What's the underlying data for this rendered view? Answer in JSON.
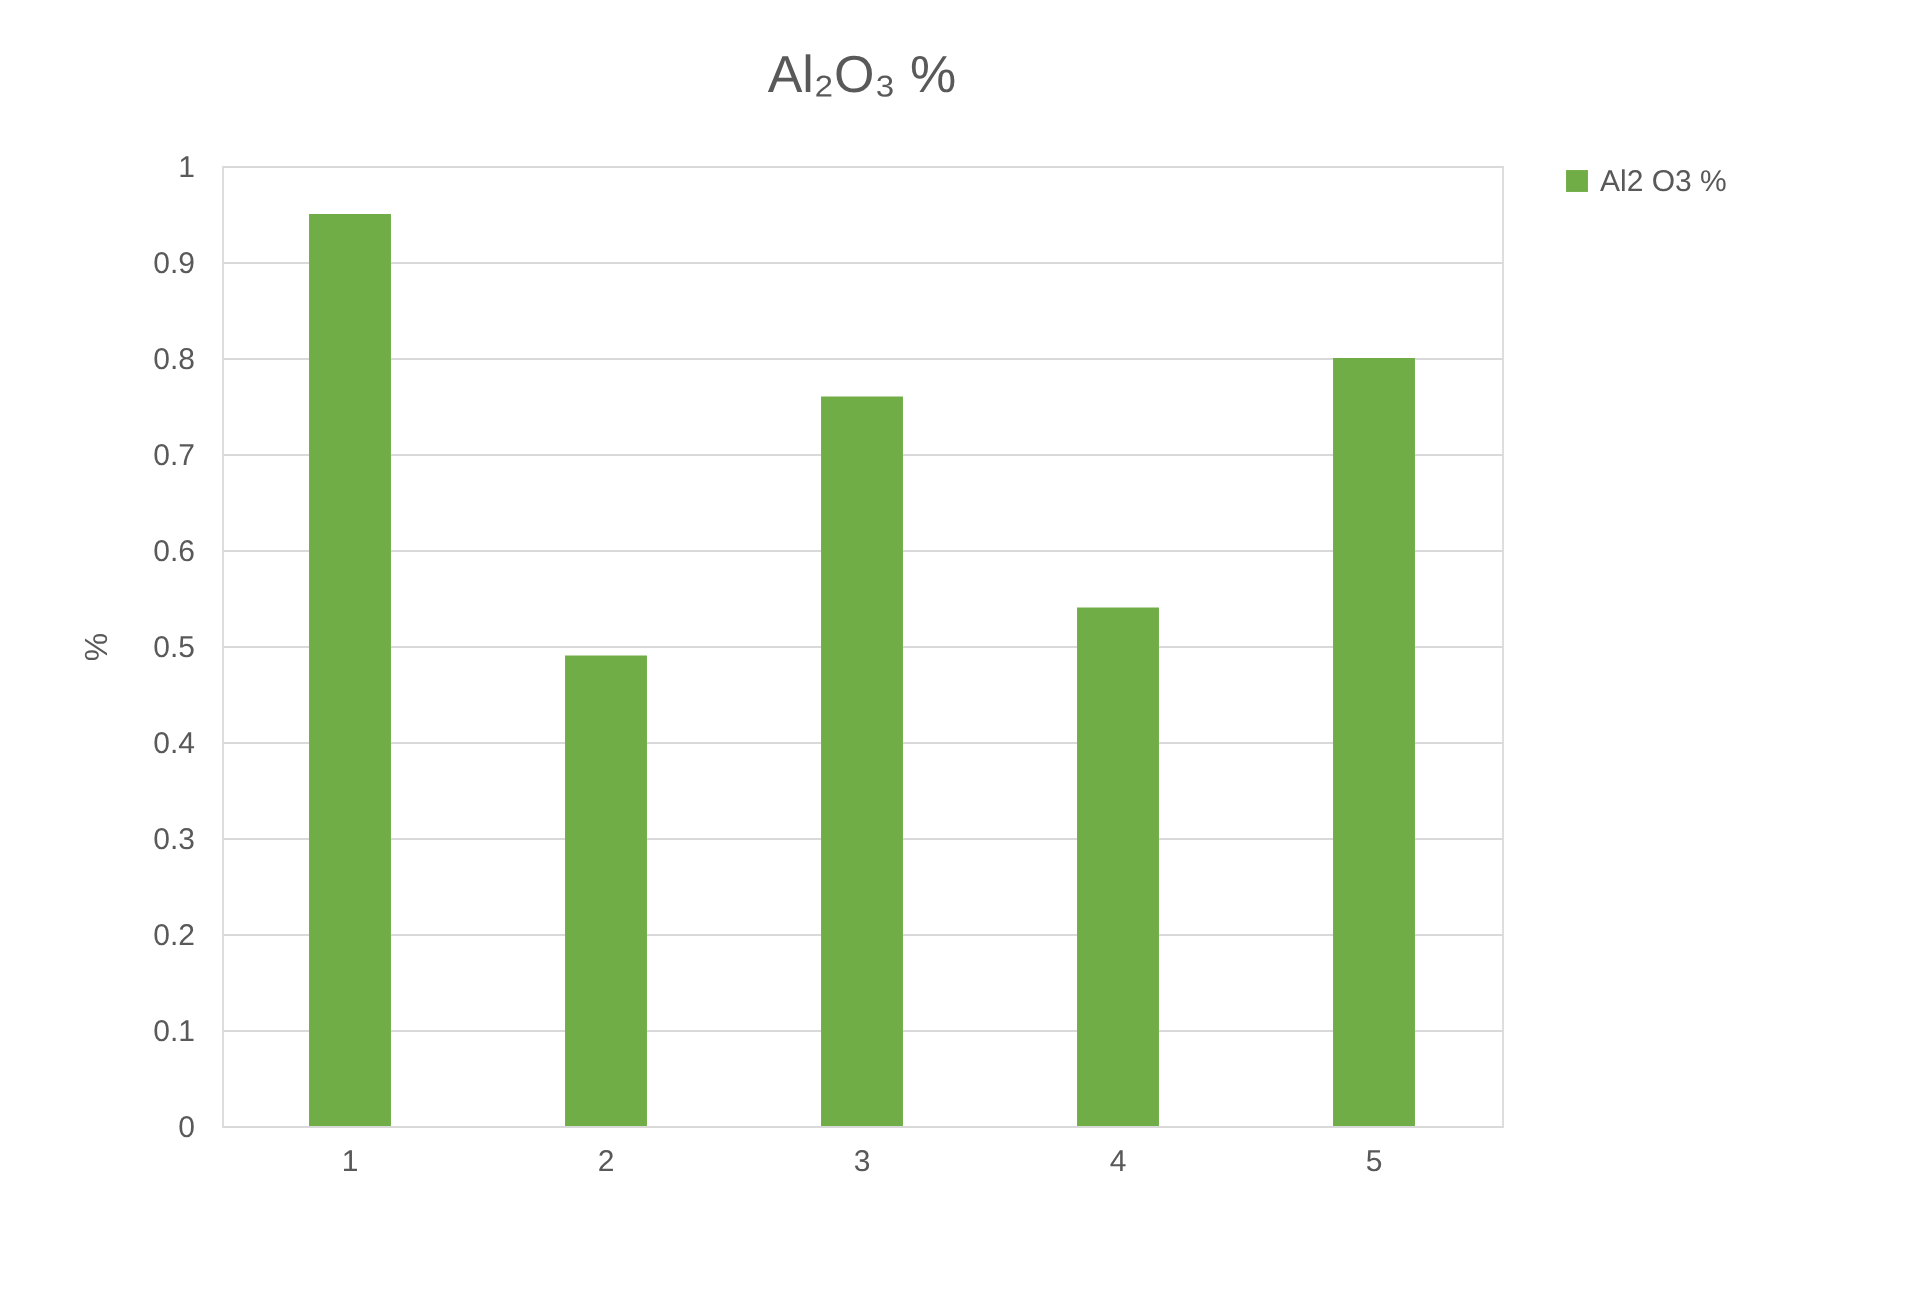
{
  "chart_data": {
    "type": "bar",
    "title": "Al₂O₃ %",
    "ylabel": "%",
    "categories": [
      "1",
      "2",
      "3",
      "4",
      "5"
    ],
    "series": [
      {
        "name": "Al2 O3 %",
        "color": "#70ad47",
        "values": [
          0.95,
          0.49,
          0.76,
          0.54,
          0.8
        ]
      }
    ],
    "ylim": [
      0,
      1
    ],
    "yticks": [
      0,
      0.1,
      0.2,
      0.3,
      0.4,
      0.5,
      0.6,
      0.7,
      0.8,
      0.9,
      1
    ],
    "grid": "y",
    "legend": "right"
  }
}
